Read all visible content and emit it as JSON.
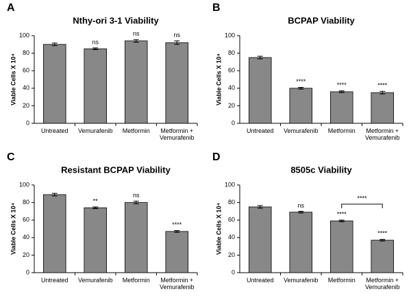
{
  "chart_data": [
    {
      "type": "bar",
      "panel": "A",
      "title": "Nthy-ori 3-1 Viability",
      "ylabel": "Viable Cells X 10⁴",
      "categories": [
        "Untreated",
        "Vemurafenib",
        "Metformin",
        "Metformin + Vemurafenib"
      ],
      "values": [
        90,
        85,
        94,
        92
      ],
      "errors": [
        1.5,
        1,
        1.5,
        2
      ],
      "annotations": [
        null,
        "ns",
        "ns",
        "ns"
      ],
      "color": "#888888",
      "ylim": [
        0,
        100
      ],
      "yticks": [
        0,
        20,
        40,
        60,
        80,
        100
      ]
    },
    {
      "type": "bar",
      "panel": "B",
      "title": "BCPAP Viability",
      "ylabel": "Viable Cells X 10⁴",
      "categories": [
        "Untreated",
        "Vemurafenib",
        "Metformin",
        "Metformin + Vemurafenib"
      ],
      "values": [
        75,
        40,
        36,
        35
      ],
      "errors": [
        1.5,
        1,
        1,
        1.5
      ],
      "annotations": [
        null,
        "****",
        "****",
        "****"
      ],
      "color": "#888888",
      "ylim": [
        0,
        100
      ],
      "yticks": [
        0,
        20,
        40,
        60,
        80,
        100
      ]
    },
    {
      "type": "bar",
      "panel": "C",
      "title": "Resistant BCPAP Viability",
      "ylabel": "Viable Cells X 10⁴",
      "categories": [
        "Untreated",
        "Vemurafenib",
        "Metformin",
        "Metformin + Vemurafenib"
      ],
      "values": [
        89,
        74,
        80,
        47
      ],
      "errors": [
        1.5,
        1,
        1.5,
        1
      ],
      "annotations": [
        null,
        "**",
        "ns",
        "****"
      ],
      "color": "#888888",
      "ylim": [
        0,
        100
      ],
      "yticks": [
        0,
        20,
        40,
        60,
        80,
        100
      ]
    },
    {
      "type": "bar",
      "panel": "D",
      "title": "8505c Viability",
      "ylabel": "Viable Cells X 10⁴",
      "categories": [
        "Untreated",
        "Vemurafenib",
        "Metformin",
        "Metformin + Vemurafenib"
      ],
      "values": [
        75,
        69,
        59,
        37
      ],
      "errors": [
        1.5,
        1,
        1,
        1
      ],
      "annotations": [
        null,
        "ns",
        "****",
        "****"
      ],
      "color": "#888888",
      "bracket": {
        "between": [
          2,
          3
        ],
        "label": "****"
      },
      "ylim": [
        0,
        100
      ],
      "yticks": [
        0,
        20,
        40,
        60,
        80,
        100
      ]
    }
  ]
}
